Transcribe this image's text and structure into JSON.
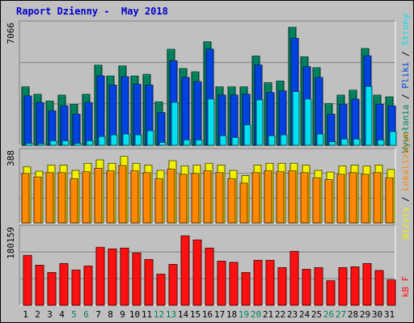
{
  "title": "Raport Dzienny -  May 2018",
  "colors": {
    "frame_bg": "#c0c0c0",
    "title": "#0000cc",
    "visits": "#00805c",
    "pages": "#0042e0",
    "files": "#00e0f0",
    "unique": "#f0f000",
    "sites": "#ff8800",
    "kbytes": "#ff1010",
    "weekend_label": "#00805c",
    "weekday_label": "#000000"
  },
  "legend": {
    "panel1": [
      "Wywołania",
      "Pliki",
      "Strony"
    ],
    "panel2": [
      "Wizyty",
      "Lokalizacje"
    ],
    "panel3": [
      "kB F"
    ],
    "separator": " / "
  },
  "chart_data": {
    "type": "bar",
    "categories": [
      "1",
      "2",
      "3",
      "4",
      "5",
      "6",
      "7",
      "8",
      "9",
      "10",
      "11",
      "12",
      "13",
      "14",
      "15",
      "16",
      "17",
      "18",
      "19",
      "20",
      "21",
      "22",
      "23",
      "24",
      "25",
      "26",
      "27",
      "28",
      "29",
      "30",
      "31"
    ],
    "weekend_days": [
      "5",
      "6",
      "12",
      "13",
      "19",
      "20",
      "26",
      "27"
    ],
    "panels": [
      {
        "id": "hits",
        "ymax_label": "7066",
        "ylim": [
          0,
          7066
        ],
        "series": [
          {
            "name": "Wywołania",
            "values": [
              3500,
              3050,
              2650,
              3000,
              2450,
              3050,
              4800,
              4150,
              4750,
              4150,
              4250,
              2600,
              5750,
              4600,
              4400,
              6200,
              3500,
              3500,
              3500,
              5350,
              3750,
              3850,
              7066,
              5300,
              4650,
              2500,
              3000,
              3300,
              5800,
              3000,
              2900
            ]
          },
          {
            "name": "Pliki",
            "values": [
              3200,
              2800,
              2300,
              2600,
              2100,
              2800,
              4400,
              3850,
              4350,
              3900,
              3850,
              2200,
              5300,
              4300,
              4050,
              6000,
              3250,
              3250,
              3300,
              5050,
              3400,
              3500,
              6650,
              4950,
              4300,
              2100,
              2700,
              3000,
              5600,
              2700,
              2600
            ]
          },
          {
            "name": "Strony",
            "values": [
              650,
              600,
              800,
              800,
              650,
              800,
              1050,
              1150,
              1200,
              1150,
              1400,
              700,
              3100,
              850,
              850,
              3300,
              1100,
              1000,
              1750,
              3250,
              1100,
              1150,
              3750,
              3300,
              1200,
              750,
              900,
              900,
              4050,
              850,
              1350
            ]
          }
        ]
      },
      {
        "id": "visits",
        "ymax_label": "388",
        "ylim": [
          0,
          388
        ],
        "series": [
          {
            "name": "Wizyty",
            "values": [
              320,
              295,
              330,
              330,
              300,
              340,
              360,
              340,
              380,
              340,
              330,
              300,
              355,
              325,
              330,
              340,
              330,
              300,
              270,
              330,
              340,
              340,
              340,
              330,
              300,
              290,
              325,
              330,
              325,
              330,
              305
            ]
          },
          {
            "name": "Lokalizacje",
            "values": [
              305,
              285,
              310,
              310,
              275,
              315,
              335,
              320,
              350,
              320,
              310,
              275,
              330,
              300,
              305,
              320,
              310,
              275,
              250,
              310,
              320,
              315,
              320,
              310,
              280,
              270,
              300,
              310,
              300,
              310,
              280
            ]
          }
        ]
      },
      {
        "id": "kbytes",
        "ymax_label": "180159",
        "ylim": [
          0,
          180159
        ],
        "series": [
          {
            "name": "kB F",
            "values": [
              122000,
              98000,
              80000,
              102000,
              86000,
              96000,
              142000,
              138000,
              140000,
              128000,
              112000,
              76000,
              100000,
              170000,
              160000,
              140000,
              108000,
              105000,
              80000,
              110000,
              110000,
              92000,
              132000,
              88000,
              92000,
              60000,
              92000,
              94000,
              102000,
              85000,
              62000
            ]
          }
        ]
      }
    ]
  }
}
